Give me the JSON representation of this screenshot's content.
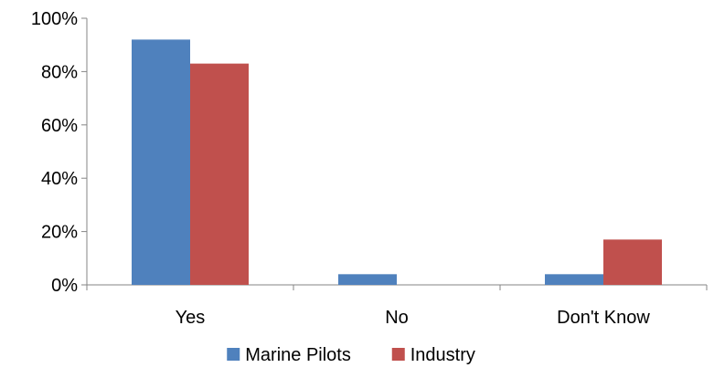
{
  "chart_data": {
    "type": "bar",
    "title": "",
    "xlabel": "",
    "ylabel": "",
    "categories": [
      "Yes",
      "No",
      "Don't Know"
    ],
    "series": [
      {
        "name": "Marine Pilots",
        "values": [
          92,
          4,
          4
        ],
        "color": "#4F81BD"
      },
      {
        "name": "Industry",
        "values": [
          83,
          0,
          17
        ],
        "color": "#C0504D"
      }
    ],
    "ylim": [
      0,
      100
    ],
    "y_ticks": [
      0,
      20,
      40,
      60,
      80,
      100
    ],
    "y_tick_labels": [
      "0%",
      "20%",
      "40%",
      "60%",
      "80%",
      "100%"
    ],
    "grid": false,
    "legend_position": "bottom"
  }
}
